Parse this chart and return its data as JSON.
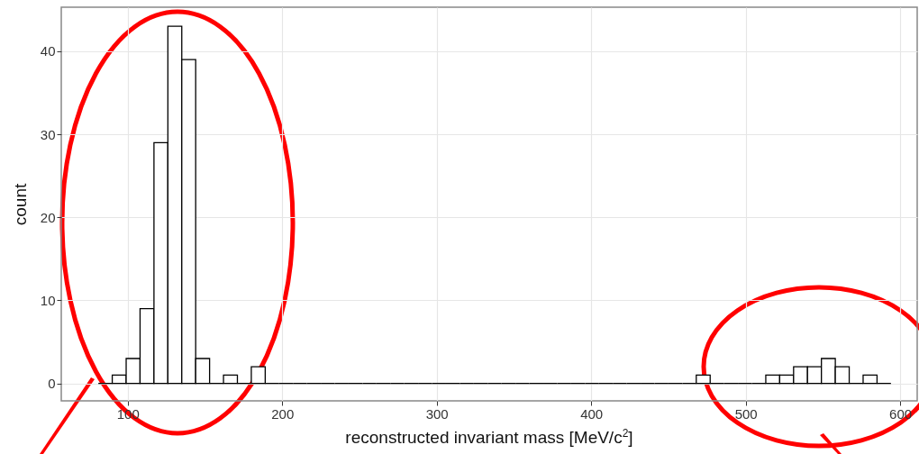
{
  "chart_data": {
    "type": "histogram",
    "xlabel": "reconstructed invariant mass [MeV/c$^{2}$]",
    "ylabel": "count",
    "bins": [
      81,
      90,
      99,
      108,
      117,
      126,
      135,
      144,
      153,
      162,
      171,
      180,
      189,
      198,
      207,
      216,
      225,
      234,
      243,
      252,
      261,
      270,
      279,
      288,
      297,
      306,
      315,
      324,
      333,
      342,
      351,
      360,
      369,
      378,
      387,
      396,
      405,
      414,
      423,
      432,
      441,
      450,
      459,
      468,
      477,
      486,
      495,
      504,
      513,
      522,
      531,
      540,
      549,
      558,
      567,
      576,
      585,
      594
    ],
    "values": [
      0,
      1,
      3,
      9,
      29,
      43,
      39,
      3,
      0,
      1,
      0,
      2,
      0,
      0,
      0,
      0,
      0,
      0,
      0,
      0,
      0,
      0,
      0,
      0,
      0,
      0,
      0,
      0,
      0,
      0,
      0,
      0,
      0,
      0,
      0,
      0,
      0,
      0,
      0,
      0,
      0,
      0,
      0,
      1,
      0,
      0,
      0,
      0,
      1,
      1,
      2,
      2,
      3,
      2,
      0,
      1,
      0
    ],
    "xlim": [
      57,
      611
    ],
    "xticks": [
      100,
      200,
      300,
      400,
      500,
      600
    ],
    "ylim": [
      -2.1,
      45.3
    ],
    "yticks": [
      0,
      10,
      20,
      30,
      40
    ],
    "grid": true
  }
}
